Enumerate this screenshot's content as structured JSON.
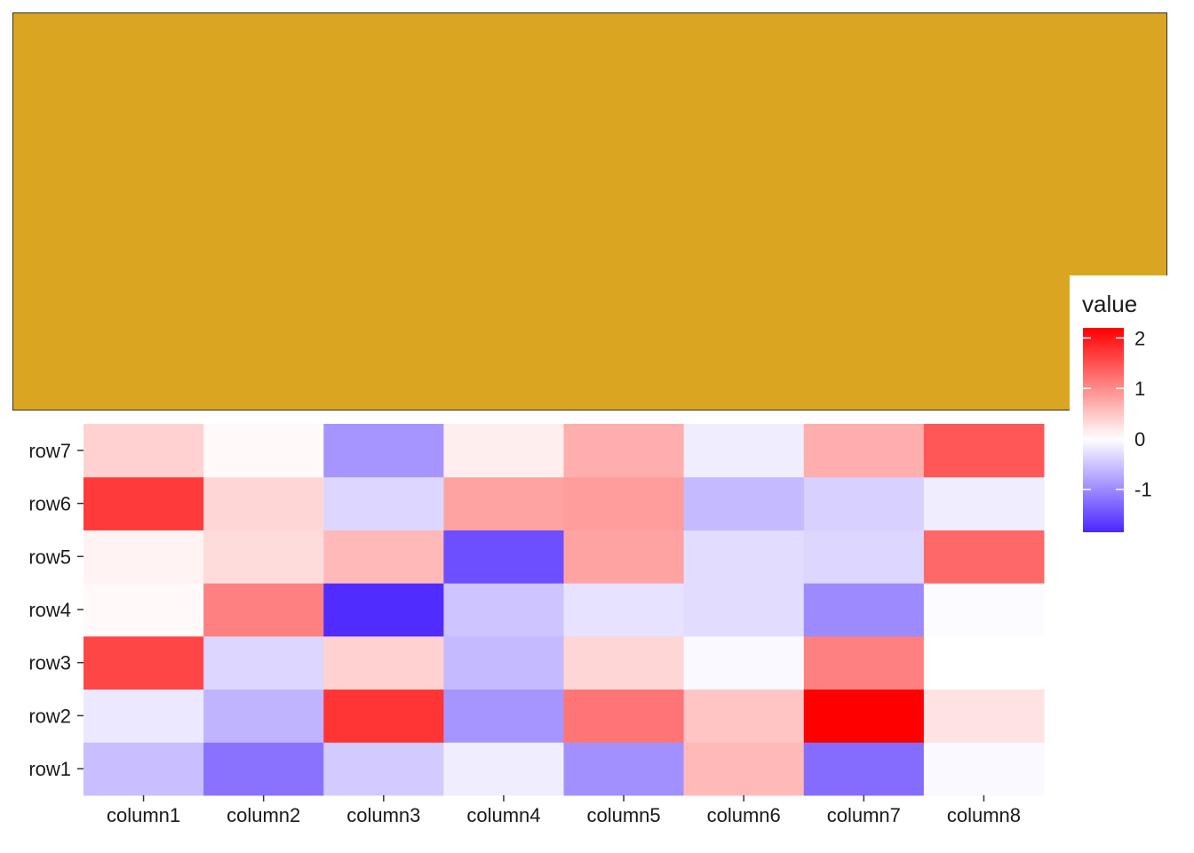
{
  "panel": {
    "fill": "#DAA520"
  },
  "chart_data": {
    "type": "heatmap",
    "x": [
      "column1",
      "column2",
      "column3",
      "column4",
      "column5",
      "column6",
      "column7",
      "column8"
    ],
    "y": [
      "row1",
      "row2",
      "row3",
      "row4",
      "row5",
      "row6",
      "row7"
    ],
    "values": [
      [
        -0.55,
        -1.2,
        -0.45,
        -0.15,
        -0.95,
        0.6,
        -1.25,
        -0.05
      ],
      [
        -0.2,
        -0.65,
        1.75,
        -0.9,
        1.2,
        0.5,
        2.2,
        0.25
      ],
      [
        1.6,
        -0.35,
        0.4,
        -0.6,
        0.35,
        -0.05,
        1.1,
        0.0
      ],
      [
        0.05,
        1.1,
        -1.8,
        -0.5,
        -0.25,
        -0.3,
        -1.0,
        -0.03
      ],
      [
        0.1,
        0.3,
        0.6,
        -1.5,
        0.8,
        -0.3,
        -0.35,
        1.3
      ],
      [
        1.7,
        0.35,
        -0.35,
        0.8,
        0.85,
        -0.6,
        -0.4,
        -0.15
      ],
      [
        0.4,
        0.05,
        -0.9,
        0.15,
        0.7,
        -0.15,
        0.7,
        1.45
      ]
    ],
    "colors": {
      "low": "#4B26FF",
      "mid": "#FFFFFF",
      "high": "#FF0000"
    },
    "value_range": [
      -1.85,
      2.2
    ],
    "legend": {
      "title": "value",
      "ticks": [
        -1,
        0,
        1,
        2
      ],
      "tick_labels": [
        "-1",
        "0",
        "1",
        "2"
      ],
      "placement": "right"
    }
  }
}
